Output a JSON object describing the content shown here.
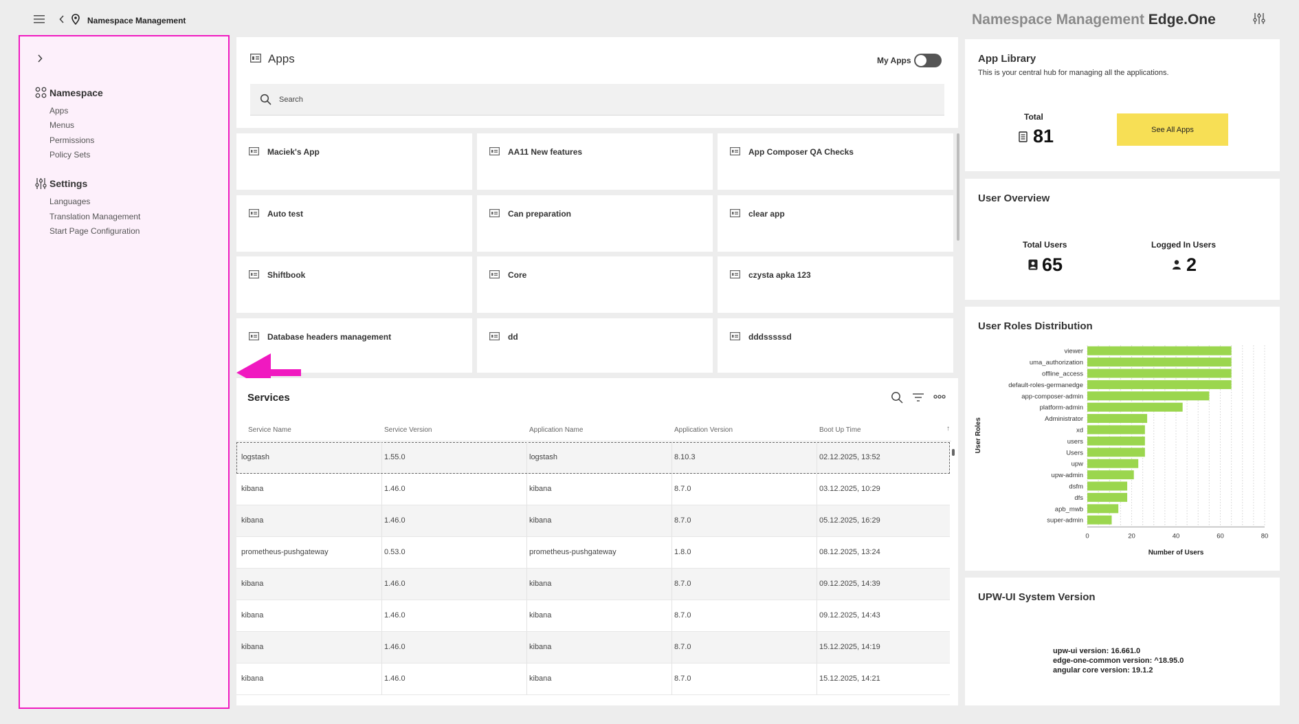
{
  "header": {
    "breadcrumb": "Namespace Management",
    "title_prefix": "Namespace Management",
    "title_brand": "Edge.One"
  },
  "sidebar": {
    "sections": [
      {
        "label": "Namespace",
        "icon": "namespace-icon",
        "items": [
          "Apps",
          "Menus",
          "Permissions",
          "Policy Sets"
        ]
      },
      {
        "label": "Settings",
        "icon": "settings-sliders-icon",
        "items": [
          "Languages",
          "Translation Management",
          "Start Page Configuration"
        ]
      }
    ]
  },
  "apps": {
    "title": "Apps",
    "my_apps_label": "My Apps",
    "my_apps_enabled": false,
    "search_placeholder": "Search",
    "tiles": [
      "Maciek's App",
      "AA11 New features",
      "App Composer QA Checks",
      "Auto test",
      "Can preparation",
      "clear app",
      "Shiftbook",
      "Core",
      "czysta apka 123",
      "Database headers management",
      "dd",
      "dddsssssd"
    ]
  },
  "services": {
    "title": "Services",
    "columns": [
      "Service Name",
      "Service Version",
      "Application Name",
      "Application Version",
      "Boot Up Time"
    ],
    "sort_indicator": "↑",
    "rows": [
      [
        "logstash",
        "1.55.0",
        "logstash",
        "8.10.3",
        "02.12.2025, 13:52"
      ],
      [
        "kibana",
        "1.46.0",
        "kibana",
        "8.7.0",
        "03.12.2025, 10:29"
      ],
      [
        "kibana",
        "1.46.0",
        "kibana",
        "8.7.0",
        "05.12.2025, 16:29"
      ],
      [
        "prometheus-pushgateway",
        "0.53.0",
        "prometheus-pushgateway",
        "1.8.0",
        "08.12.2025, 13:24"
      ],
      [
        "kibana",
        "1.46.0",
        "kibana",
        "8.7.0",
        "09.12.2025, 14:39"
      ],
      [
        "kibana",
        "1.46.0",
        "kibana",
        "8.7.0",
        "09.12.2025, 14:43"
      ],
      [
        "kibana",
        "1.46.0",
        "kibana",
        "8.7.0",
        "15.12.2025, 14:19"
      ],
      [
        "kibana",
        "1.46.0",
        "kibana",
        "8.7.0",
        "15.12.2025, 14:21"
      ]
    ]
  },
  "app_library": {
    "title": "App Library",
    "subtitle": "This is your central hub for managing all the applications.",
    "total_label": "Total",
    "total_value": "81",
    "button_label": "See All Apps",
    "button_color": "#f7df55"
  },
  "user_overview": {
    "title": "User Overview",
    "total_users_label": "Total Users",
    "total_users_value": "65",
    "logged_in_label": "Logged In Users",
    "logged_in_value": "2"
  },
  "user_roles": {
    "title": "User Roles Distribution"
  },
  "system_version": {
    "title": "UPW-UI System Version",
    "lines": [
      "upw-ui version: 16.661.0",
      "edge-one-common version: ^18.95.0",
      "angular core version: 19.1.2"
    ]
  },
  "colors": {
    "sidebar_highlight": "#f019c0",
    "sidebar_bg": "#fdf0fb",
    "bar_color": "#9bd64e",
    "arrow_color": "#f019c0"
  },
  "chart_data": {
    "type": "bar",
    "orientation": "horizontal",
    "categories": [
      "viewer",
      "uma_authorization",
      "offline_access",
      "default-roles-germanedge",
      "app-composer-admin",
      "platform-admin",
      "Administrator",
      "xd",
      "users",
      "Users",
      "upw",
      "upw-admin",
      "dsfm",
      "dfs",
      "apb_mwb",
      "super-admin"
    ],
    "values": [
      65,
      65,
      65,
      65,
      55,
      43,
      27,
      26,
      26,
      26,
      23,
      21,
      18,
      18,
      14,
      11
    ],
    "xlabel": "Number of Users",
    "ylabel": "User Roles",
    "xlim": [
      0,
      80
    ],
    "xticks": [
      0,
      20,
      40,
      60,
      80
    ],
    "grid": true
  }
}
